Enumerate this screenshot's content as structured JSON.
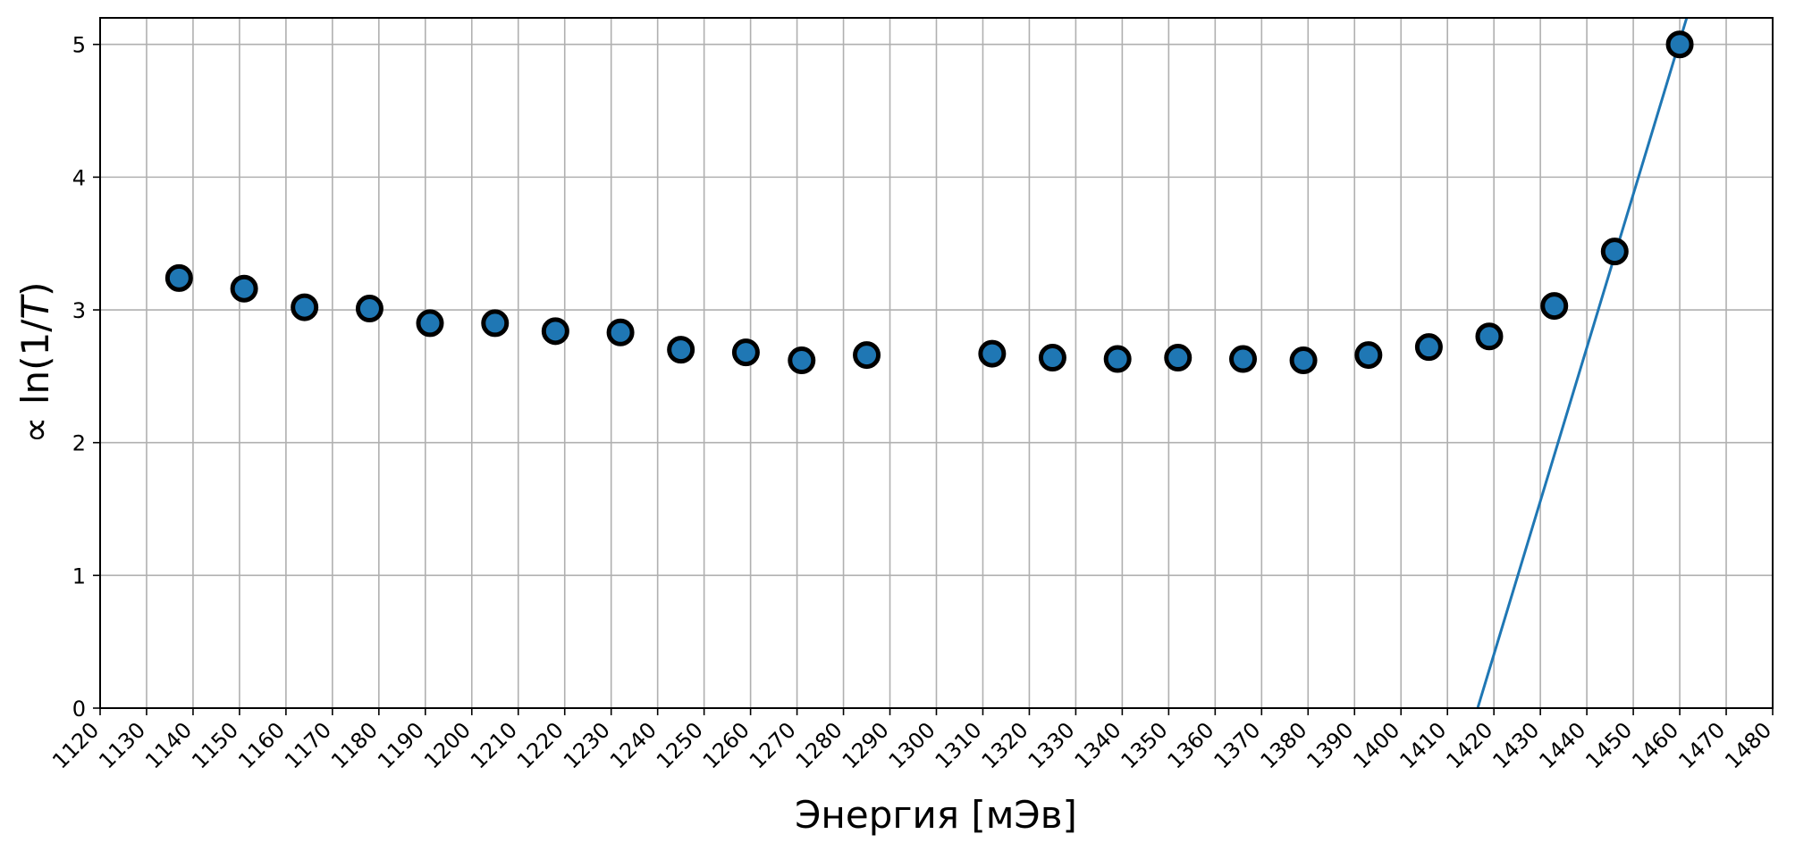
{
  "chart_data": {
    "type": "scatter",
    "xlabel": "Энергия [мЭв]",
    "ylabel_prefix": "∝ ln(1/",
    "ylabel_italic": "T",
    "ylabel_suffix": ")",
    "xlim": [
      1120,
      1480
    ],
    "ylim": [
      0,
      5.2
    ],
    "xticks": [
      1120,
      1130,
      1140,
      1150,
      1160,
      1170,
      1180,
      1190,
      1200,
      1210,
      1220,
      1230,
      1240,
      1250,
      1260,
      1270,
      1280,
      1290,
      1300,
      1310,
      1320,
      1330,
      1340,
      1350,
      1360,
      1370,
      1380,
      1390,
      1400,
      1410,
      1420,
      1430,
      1440,
      1450,
      1460,
      1470,
      1480
    ],
    "yticks": [
      0,
      1,
      2,
      3,
      4,
      5
    ],
    "grid": true,
    "points": [
      {
        "x": 1137,
        "y": 3.24
      },
      {
        "x": 1151,
        "y": 3.16
      },
      {
        "x": 1164,
        "y": 3.02
      },
      {
        "x": 1178,
        "y": 3.01
      },
      {
        "x": 1191,
        "y": 2.9
      },
      {
        "x": 1205,
        "y": 2.9
      },
      {
        "x": 1218,
        "y": 2.84
      },
      {
        "x": 1232,
        "y": 2.83
      },
      {
        "x": 1245,
        "y": 2.7
      },
      {
        "x": 1259,
        "y": 2.68
      },
      {
        "x": 1271,
        "y": 2.62
      },
      {
        "x": 1285,
        "y": 2.66
      },
      {
        "x": 1312,
        "y": 2.67
      },
      {
        "x": 1325,
        "y": 2.64
      },
      {
        "x": 1339,
        "y": 2.63
      },
      {
        "x": 1352,
        "y": 2.64
      },
      {
        "x": 1366,
        "y": 2.63
      },
      {
        "x": 1379,
        "y": 2.62
      },
      {
        "x": 1393,
        "y": 2.66
      },
      {
        "x": 1406,
        "y": 2.72
      },
      {
        "x": 1419,
        "y": 2.8
      },
      {
        "x": 1433,
        "y": 3.03
      },
      {
        "x": 1446,
        "y": 3.44
      },
      {
        "x": 1460,
        "y": 5.0
      }
    ],
    "fit_line": {
      "x": [
        1416.5,
        1461.5
      ],
      "y": [
        0,
        5.2
      ]
    },
    "colors": {
      "marker_fill": "#1f77b4",
      "marker_edge": "#000000",
      "line": "#1f77b4",
      "grid": "#b0b0b0"
    }
  }
}
